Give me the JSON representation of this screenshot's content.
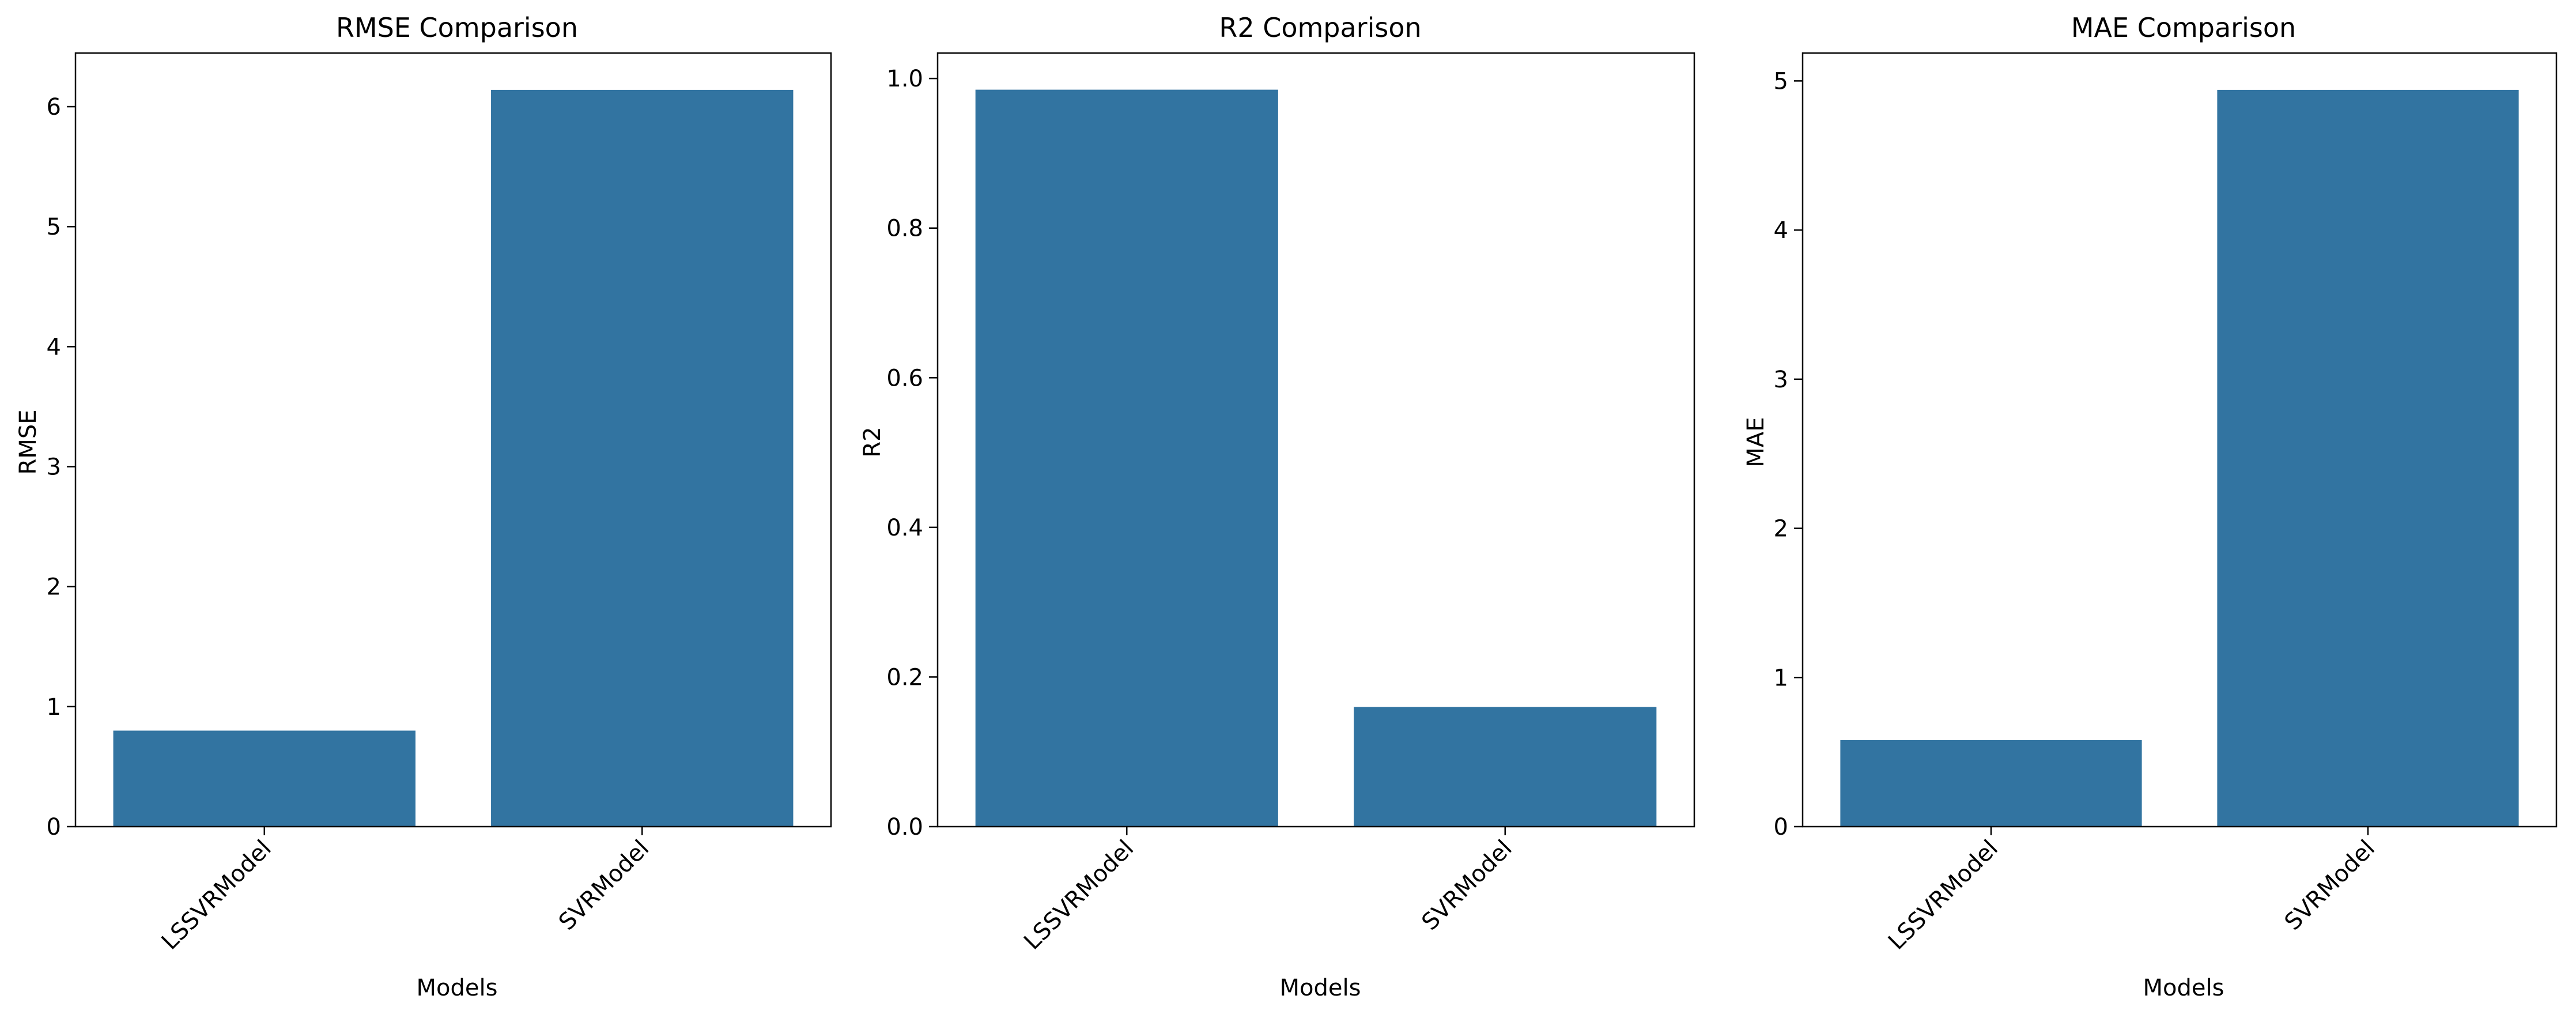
{
  "chart_data": [
    {
      "type": "bar",
      "title": "RMSE Comparison",
      "xlabel": "Models",
      "ylabel": "RMSE",
      "categories": [
        "LSSVRModel",
        "SVRModel"
      ],
      "values": [
        0.8,
        6.14
      ],
      "ylim": [
        0,
        6.447
      ],
      "yticks": [
        "0",
        "1",
        "2",
        "3",
        "4",
        "5",
        "6"
      ],
      "bar_color": "#3274a1",
      "grid": false,
      "legend": "none"
    },
    {
      "type": "bar",
      "title": "R2 Comparison",
      "xlabel": "Models",
      "ylabel": "R2",
      "categories": [
        "LSSVRModel",
        "SVRModel"
      ],
      "values": [
        0.985,
        0.16
      ],
      "ylim": [
        0,
        1.034
      ],
      "yticks": [
        "0.0",
        "0.2",
        "0.4",
        "0.6",
        "0.8",
        "1.0"
      ],
      "bar_color": "#3274a1",
      "grid": false,
      "legend": "none"
    },
    {
      "type": "bar",
      "title": "MAE Comparison",
      "xlabel": "Models",
      "ylabel": "MAE",
      "categories": [
        "LSSVRModel",
        "SVRModel"
      ],
      "values": [
        0.58,
        4.94
      ],
      "ylim": [
        0,
        5.187
      ],
      "yticks": [
        "0",
        "1",
        "2",
        "3",
        "4",
        "5"
      ],
      "bar_color": "#3274a1",
      "grid": false,
      "legend": "none"
    }
  ]
}
